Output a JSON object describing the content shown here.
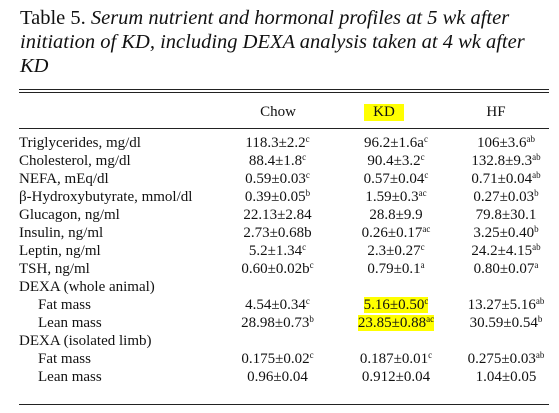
{
  "caption": {
    "lead": "Table 5.",
    "text": "Serum nutrient and hormonal profiles at 5 wk after initiation of KD, including DEXA analysis taken at 4 wk after KD"
  },
  "columns": [
    "Chow",
    "KD",
    "HF"
  ],
  "highlight_color": "#ffff00",
  "rows": [
    {
      "label": "Triglycerides, mg/dl",
      "indent": false,
      "cells": [
        {
          "v": "118.3±2.2",
          "s": "c"
        },
        {
          "v": "96.2±1.6a",
          "s": "c"
        },
        {
          "v": "106±3.6",
          "s": "ab"
        }
      ]
    },
    {
      "label": "Cholesterol, mg/dl",
      "indent": false,
      "cells": [
        {
          "v": "88.4±1.8",
          "s": "c"
        },
        {
          "v": "90.4±3.2",
          "s": "c"
        },
        {
          "v": "132.8±9.3",
          "s": "ab"
        }
      ]
    },
    {
      "label": "NEFA, mEq/dl",
      "indent": false,
      "cells": [
        {
          "v": "0.59±0.03",
          "s": "c"
        },
        {
          "v": "0.57±0.04",
          "s": "c"
        },
        {
          "v": "0.71±0.04",
          "s": "ab"
        }
      ]
    },
    {
      "label": "β-Hydroxybutyrate, mmol/dl",
      "indent": false,
      "cells": [
        {
          "v": "0.39±0.05",
          "s": "b"
        },
        {
          "v": "1.59±0.3",
          "s": "ac"
        },
        {
          "v": "0.27±0.03",
          "s": "b"
        }
      ]
    },
    {
      "label": "Glucagon, ng/ml",
      "indent": false,
      "cells": [
        {
          "v": "22.13±2.84",
          "s": ""
        },
        {
          "v": "28.8±9.9",
          "s": ""
        },
        {
          "v": "79.8±30.1",
          "s": ""
        }
      ]
    },
    {
      "label": "Insulin, ng/ml",
      "indent": false,
      "cells": [
        {
          "v": "2.73±0.68b",
          "s": ""
        },
        {
          "v": "0.26±0.17",
          "s": "ac"
        },
        {
          "v": "3.25±0.40",
          "s": "b"
        }
      ]
    },
    {
      "label": "Leptin, ng/ml",
      "indent": false,
      "cells": [
        {
          "v": "5.2±1.34",
          "s": "c"
        },
        {
          "v": "2.3±0.27",
          "s": "c"
        },
        {
          "v": "24.2±4.15",
          "s": "ab"
        }
      ]
    },
    {
      "label": "TSH, ng/ml",
      "indent": false,
      "cells": [
        {
          "v": "0.60±0.02b",
          "s": "c"
        },
        {
          "v": "0.79±0.1",
          "s": "a"
        },
        {
          "v": "0.80±0.07",
          "s": "a"
        }
      ]
    },
    {
      "label": "DEXA (whole animal)",
      "indent": false,
      "cells": [
        {
          "v": "",
          "s": ""
        },
        {
          "v": "",
          "s": ""
        },
        {
          "v": "",
          "s": ""
        }
      ]
    },
    {
      "label": "Fat mass",
      "indent": true,
      "cells": [
        {
          "v": "4.54±0.34",
          "s": "c"
        },
        {
          "v": "5.16±0.50",
          "s": "c",
          "hl": true
        },
        {
          "v": "13.27±5.16",
          "s": "ab"
        }
      ]
    },
    {
      "label": "Lean mass",
      "indent": true,
      "cells": [
        {
          "v": "28.98±0.73",
          "s": "b"
        },
        {
          "v": "23.85±0.88",
          "s": "ac",
          "hl": true
        },
        {
          "v": "30.59±0.54",
          "s": "b"
        }
      ]
    },
    {
      "label": "DEXA (isolated limb)",
      "indent": false,
      "cells": [
        {
          "v": "",
          "s": ""
        },
        {
          "v": "",
          "s": ""
        },
        {
          "v": "",
          "s": ""
        }
      ]
    },
    {
      "label": "Fat mass",
      "indent": true,
      "cells": [
        {
          "v": "0.175±0.02",
          "s": "c"
        },
        {
          "v": "0.187±0.01",
          "s": "c"
        },
        {
          "v": "0.275±0.03",
          "s": "ab"
        }
      ]
    },
    {
      "label": "Lean mass",
      "indent": true,
      "cells": [
        {
          "v": "0.96±0.04",
          "s": ""
        },
        {
          "v": "0.912±0.04",
          "s": ""
        },
        {
          "v": "1.04±0.05",
          "s": ""
        }
      ]
    }
  ]
}
